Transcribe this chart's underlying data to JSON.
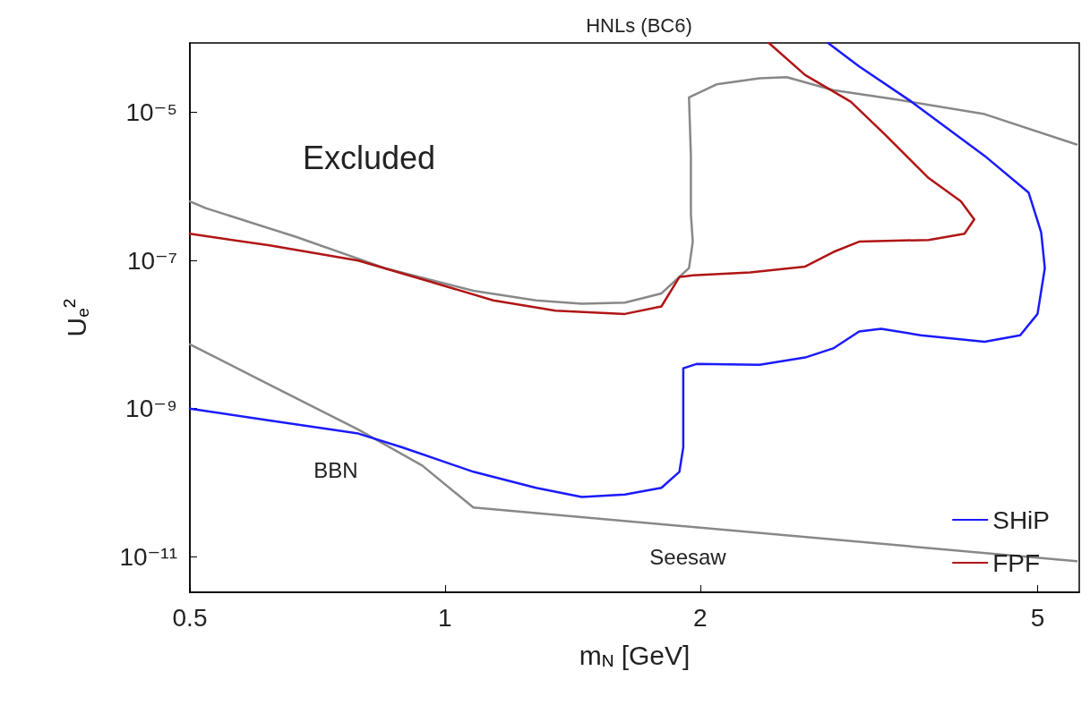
{
  "chart_data": {
    "type": "line",
    "title": "HNLs (BC6)",
    "xlabel": "m$_{N}$ [GeV]",
    "ylabel": "U$_{e}$$^{2}$",
    "log": "xy",
    "xlim": [
      0.5,
      5.6
    ],
    "ylim": [
      3.3e-12,
      8.7e-05
    ],
    "xticks": [
      0.5,
      1,
      2,
      5
    ],
    "yticks": [
      {
        "value": 1e-11,
        "label": "10⁻¹¹"
      },
      {
        "value": 1e-09,
        "label": "10⁻⁹"
      },
      {
        "value": 1e-07,
        "label": "10⁻⁷"
      },
      {
        "value": 1e-05,
        "label": "10⁻⁵"
      }
    ],
    "grid": false,
    "legend": "bottom right",
    "marker": "none",
    "line_style": "solid",
    "series": [
      {
        "color": "#888888",
        "x": [
          0.5,
          0.522,
          0.666,
          0.849,
          1.08,
          1.28,
          1.45,
          1.63,
          1.8,
          1.94,
          1.96,
          1.95,
          1.95,
          1.94,
          2.09,
          2.35,
          2.53,
          2.87,
          3.41,
          4.33,
          5.56
        ],
        "values": [
          6.3e-07,
          5.1e-07,
          2.1e-07,
          7.9e-08,
          3.9e-08,
          2.9e-08,
          2.6e-08,
          2.7e-08,
          3.6e-08,
          7.9e-08,
          1.8e-07,
          4.2e-07,
          2.6e-06,
          1.6e-05,
          2.4e-05,
          2.9e-05,
          3e-05,
          2e-05,
          1.5e-05,
          9.5e-06,
          3.7e-06
        ]
      },
      {
        "color": "#888888",
        "x": [
          0.5,
          0.621,
          0.79,
          0.94,
          1.08,
          5.56
        ],
        "values": [
          7.4e-09,
          2.1e-09,
          5.2e-10,
          1.7e-10,
          4.6e-11,
          8.7e-12
        ]
      },
      {
        "name": "SHiP",
        "color": "#1a1aff",
        "x": [
          0.5,
          0.621,
          0.79,
          0.89,
          1.08,
          1.28,
          1.45,
          1.63,
          1.8,
          1.89,
          1.91,
          1.91,
          1.98,
          2.35,
          2.66,
          2.87,
          3.08,
          3.27,
          3.64,
          4.33,
          4.77,
          5.0,
          5.1,
          5.05,
          4.88,
          4.33,
          3.55,
          3.08,
          2.83
        ],
        "values": [
          1e-09,
          6.9e-10,
          4.6e-10,
          3e-10,
          1.4e-10,
          8.5e-11,
          6.4e-11,
          6.9e-11,
          8.5e-11,
          1.4e-10,
          3e-10,
          3.5e-09,
          4e-09,
          3.9e-09,
          4.9e-09,
          6.5e-09,
          1.1e-08,
          1.2e-08,
          9.8e-09,
          8e-09,
          9.8e-09,
          1.9e-08,
          7.9e-08,
          2.4e-07,
          8.3e-07,
          2.6e-06,
          1.4e-05,
          4.2e-05,
          8.7e-05
        ]
      },
      {
        "name": "FPF",
        "color": "#b01515",
        "x": [
          0.5,
          0.621,
          0.79,
          0.96,
          1.14,
          1.35,
          1.63,
          1.8,
          1.89,
          1.96,
          2.29,
          2.66,
          2.87,
          3.08,
          3.72,
          4.1,
          4.21,
          4.06,
          3.72,
          3.3,
          3.01,
          2.66,
          2.41
        ],
        "values": [
          2.3e-07,
          1.6e-07,
          1e-07,
          5.2e-08,
          2.9e-08,
          2.1e-08,
          1.9e-08,
          2.4e-08,
          6e-08,
          6.3e-08,
          6.9e-08,
          8.3e-08,
          1.3e-07,
          1.8e-07,
          1.9e-07,
          2.3e-07,
          3.6e-07,
          6.3e-07,
          1.3e-06,
          5.1e-06,
          1.4e-05,
          3.2e-05,
          8.7e-05
        ]
      }
    ],
    "annotations": [
      "Excluded",
      "BBN",
      "Seesaw"
    ]
  }
}
